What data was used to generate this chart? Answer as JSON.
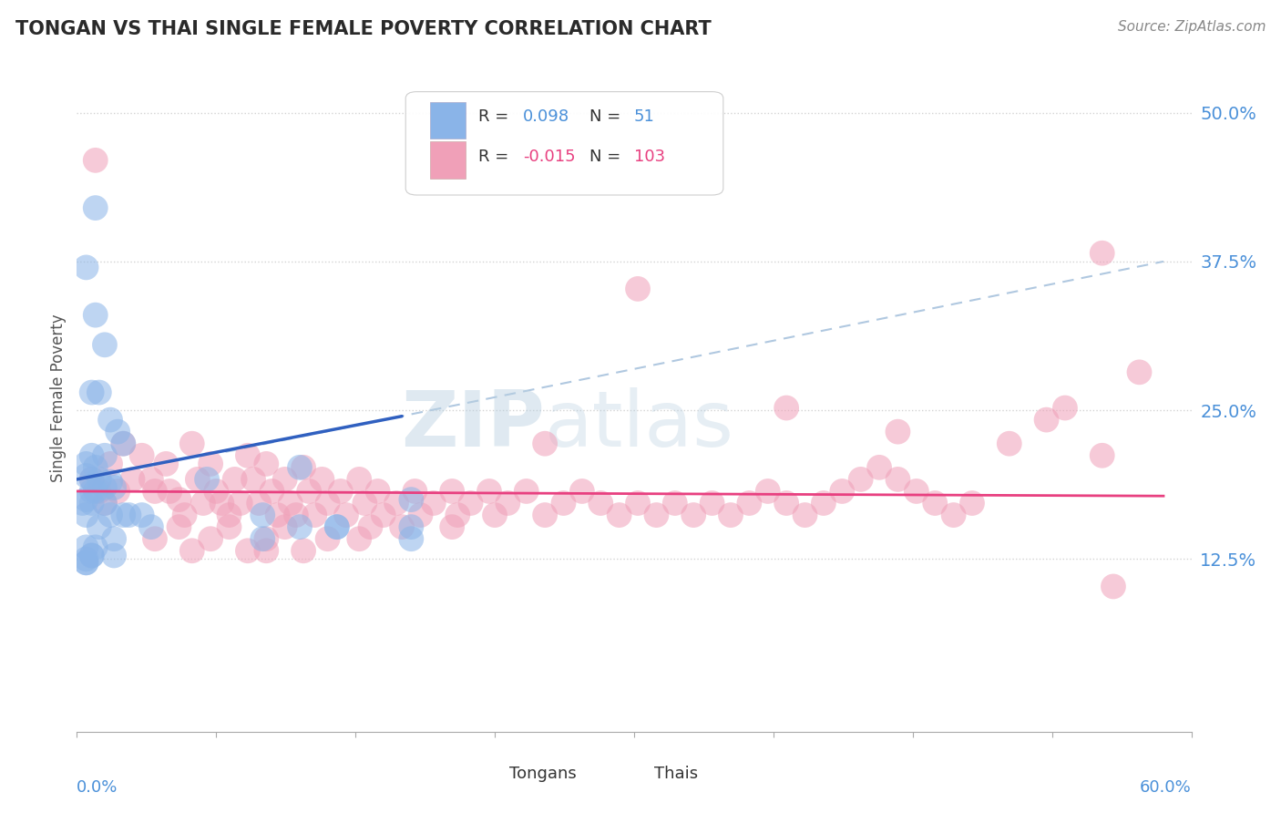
{
  "title": "TONGAN VS THAI SINGLE FEMALE POVERTY CORRELATION CHART",
  "source": "Source: ZipAtlas.com",
  "ylabel": "Single Female Poverty",
  "xlim": [
    0.0,
    0.6
  ],
  "ylim": [
    -0.02,
    0.54
  ],
  "color_tongan": "#8ab4e8",
  "color_thai": "#f0a0b8",
  "color_tongan_line": "#3060c0",
  "color_thai_line": "#e84080",
  "color_dashed": "#b0c8e0",
  "watermark_color": "#c8daea",
  "background_color": "#ffffff",
  "legend_text_color_blue": "#4a90d9",
  "legend_text_color_black": "#333333",
  "grid_color": "#c8c8c8",
  "ytick_vals": [
    0.125,
    0.25,
    0.375,
    0.5
  ],
  "ytick_labels": [
    "12.5%",
    "25.0%",
    "37.5%",
    "50.0%"
  ],
  "tongan_x": [
    0.005,
    0.01,
    0.005,
    0.01,
    0.015,
    0.008,
    0.012,
    0.018,
    0.022,
    0.025,
    0.015,
    0.008,
    0.01,
    0.005,
    0.012,
    0.008,
    0.018,
    0.015,
    0.02,
    0.01,
    0.008,
    0.005,
    0.003,
    0.008,
    0.015,
    0.018,
    0.025,
    0.035,
    0.028,
    0.012,
    0.07,
    0.04,
    0.005,
    0.01,
    0.12,
    0.005,
    0.14,
    0.005,
    0.005,
    0.14,
    0.18,
    0.02,
    0.12,
    0.1,
    0.02,
    0.008,
    0.008,
    0.18,
    0.18,
    0.005,
    0.1
  ],
  "tongan_y": [
    0.205,
    0.42,
    0.37,
    0.33,
    0.305,
    0.265,
    0.265,
    0.242,
    0.232,
    0.222,
    0.212,
    0.212,
    0.202,
    0.195,
    0.192,
    0.192,
    0.19,
    0.185,
    0.185,
    0.182,
    0.182,
    0.175,
    0.172,
    0.172,
    0.172,
    0.162,
    0.162,
    0.162,
    0.162,
    0.152,
    0.192,
    0.152,
    0.135,
    0.135,
    0.202,
    0.125,
    0.152,
    0.122,
    0.122,
    0.152,
    0.175,
    0.142,
    0.152,
    0.162,
    0.128,
    0.128,
    0.128,
    0.152,
    0.142,
    0.162,
    0.142
  ],
  "thai_x": [
    0.008,
    0.012,
    0.015,
    0.018,
    0.022,
    0.025,
    0.03,
    0.035,
    0.04,
    0.042,
    0.048,
    0.05,
    0.055,
    0.058,
    0.062,
    0.065,
    0.068,
    0.072,
    0.075,
    0.078,
    0.082,
    0.085,
    0.088,
    0.092,
    0.095,
    0.098,
    0.102,
    0.105,
    0.108,
    0.112,
    0.115,
    0.118,
    0.122,
    0.125,
    0.128,
    0.132,
    0.135,
    0.142,
    0.145,
    0.152,
    0.155,
    0.158,
    0.162,
    0.165,
    0.172,
    0.175,
    0.182,
    0.185,
    0.192,
    0.202,
    0.205,
    0.212,
    0.222,
    0.225,
    0.232,
    0.242,
    0.252,
    0.262,
    0.272,
    0.282,
    0.292,
    0.302,
    0.312,
    0.322,
    0.332,
    0.342,
    0.352,
    0.362,
    0.372,
    0.382,
    0.392,
    0.402,
    0.412,
    0.422,
    0.432,
    0.442,
    0.452,
    0.462,
    0.472,
    0.482,
    0.502,
    0.522,
    0.532,
    0.552,
    0.042,
    0.055,
    0.062,
    0.072,
    0.082,
    0.092,
    0.102,
    0.112,
    0.122,
    0.135,
    0.552,
    0.572,
    0.442,
    0.382,
    0.302,
    0.252,
    0.202,
    0.152,
    0.102,
    0.01,
    0.558
  ],
  "thai_y": [
    0.192,
    0.182,
    0.172,
    0.205,
    0.182,
    0.222,
    0.192,
    0.212,
    0.192,
    0.182,
    0.205,
    0.182,
    0.175,
    0.162,
    0.222,
    0.192,
    0.172,
    0.205,
    0.182,
    0.172,
    0.162,
    0.192,
    0.172,
    0.212,
    0.192,
    0.172,
    0.205,
    0.182,
    0.162,
    0.192,
    0.172,
    0.162,
    0.202,
    0.182,
    0.162,
    0.192,
    0.172,
    0.182,
    0.162,
    0.192,
    0.172,
    0.152,
    0.182,
    0.162,
    0.172,
    0.152,
    0.182,
    0.162,
    0.172,
    0.182,
    0.162,
    0.172,
    0.182,
    0.162,
    0.172,
    0.182,
    0.162,
    0.172,
    0.182,
    0.172,
    0.162,
    0.172,
    0.162,
    0.172,
    0.162,
    0.172,
    0.162,
    0.172,
    0.182,
    0.172,
    0.162,
    0.172,
    0.182,
    0.192,
    0.202,
    0.192,
    0.182,
    0.172,
    0.162,
    0.172,
    0.222,
    0.242,
    0.252,
    0.212,
    0.142,
    0.152,
    0.132,
    0.142,
    0.152,
    0.132,
    0.142,
    0.152,
    0.132,
    0.142,
    0.382,
    0.282,
    0.232,
    0.252,
    0.352,
    0.222,
    0.152,
    0.142,
    0.132,
    0.46,
    0.102
  ],
  "blue_line_x": [
    0.0,
    0.175
  ],
  "blue_line_y": [
    0.192,
    0.245
  ],
  "pink_line_x": [
    0.0,
    0.585
  ],
  "pink_line_y": [
    0.182,
    0.178
  ],
  "dashed_line_x": [
    0.08,
    0.585
  ],
  "dashed_line_y": [
    0.215,
    0.375
  ]
}
